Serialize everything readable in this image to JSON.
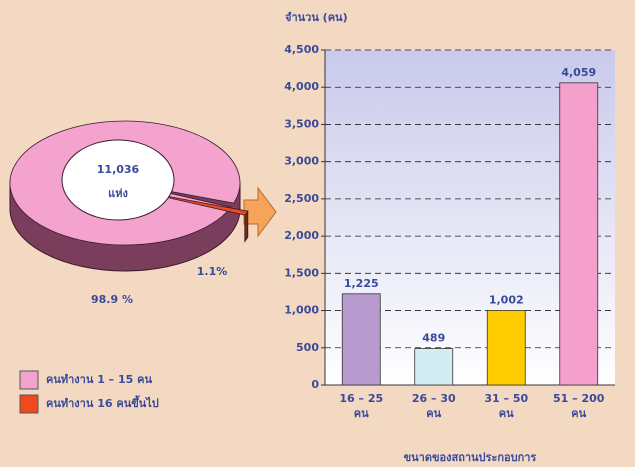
{
  "chart_data": [
    {
      "type": "pie",
      "annotations": [
        "11,036",
        "แห่ง"
      ],
      "series": [
        {
          "name": "คนทำงาน 1 – 15 คน",
          "color": "#f4a3cf"
        },
        {
          "name": "คนทำงาน 16 คนขึ้นไป",
          "color": "#ee4a1e"
        }
      ],
      "values": [
        98.9,
        1.1
      ],
      "value_labels": [
        "98.9 %",
        "1.1%"
      ],
      "legend": "bottom-left"
    },
    {
      "type": "bar",
      "ylabel": "จำนวน (คน)",
      "xlabel": "ขนาดของสถานประกอบการ",
      "categories": [
        "16 – 25\nคน",
        "26 – 30\nคน",
        "31 – 50\nคน",
        "51 – 200\nคน"
      ],
      "values": [
        1225,
        489,
        1002,
        4059
      ],
      "value_labels": [
        "1,225",
        "489",
        "1,002",
        "4,059"
      ],
      "colors": [
        "#b79bcf",
        "#d3eef3",
        "#ffcc00",
        "#f49fcc"
      ],
      "ylim": [
        0,
        4500
      ],
      "yticks": [
        0,
        500,
        {
          "value": 1000,
          "label": "1,000"
        },
        {
          "value": 1500,
          "label": "1,500"
        },
        {
          "value": 2000,
          "label": "2,000"
        },
        {
          "value": 2500,
          "label": "2,500"
        },
        {
          "value": 3000,
          "label": "3,000"
        },
        {
          "value": 3500,
          "label": "3,500"
        },
        {
          "value": 4000,
          "label": "4,000"
        },
        {
          "value": 4500,
          "label": "4,500"
        }
      ],
      "grid": true
    }
  ]
}
